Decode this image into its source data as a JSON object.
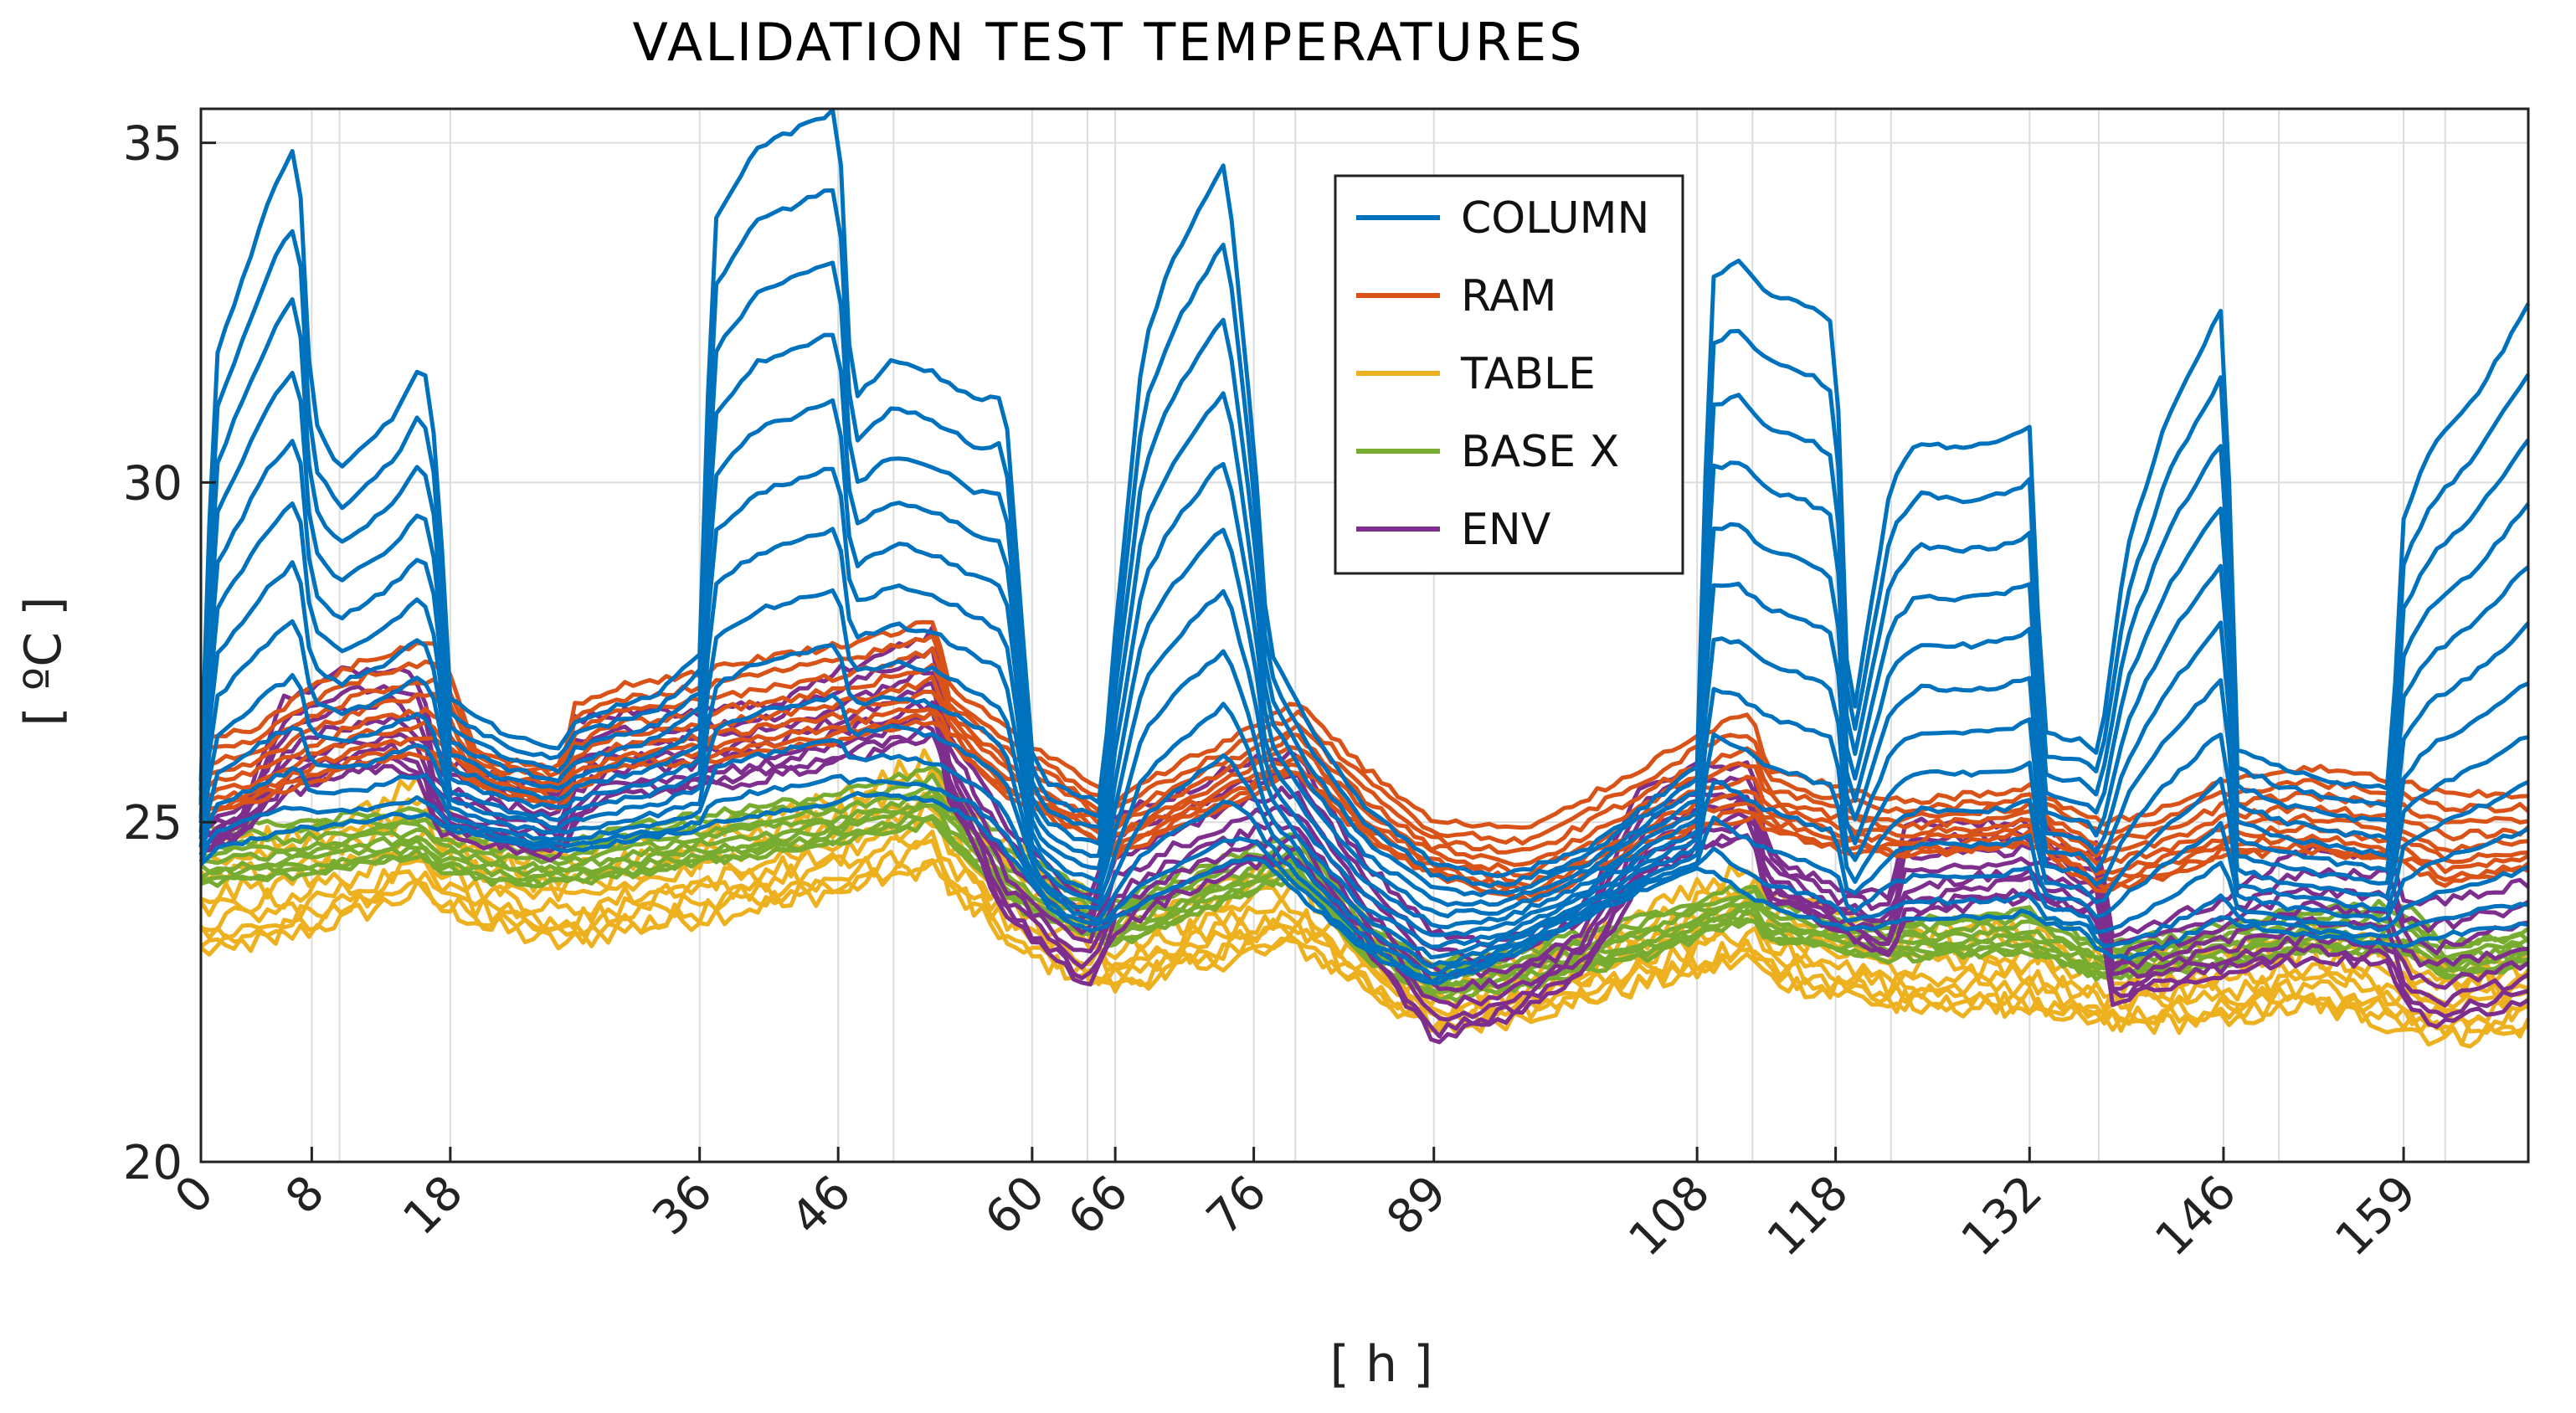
{
  "chart_data": {
    "type": "line",
    "title": "VALIDATION TEST TEMPERATURES",
    "xlabel": "[ h ]",
    "ylabel": "[ ºC ]",
    "xlim": [
      0,
      168
    ],
    "ylim": [
      20,
      35.5
    ],
    "x_ticks": [
      0,
      8,
      18,
      36,
      46,
      60,
      66,
      76,
      89,
      108,
      118,
      132,
      146,
      159
    ],
    "x_grid": [
      0,
      8,
      10,
      18,
      36,
      46,
      50,
      60,
      64,
      66,
      76,
      79,
      89,
      108,
      112,
      118,
      122,
      132,
      137,
      146,
      150,
      159,
      162
    ],
    "y_ticks": [
      20,
      25,
      30,
      35
    ],
    "grid": true,
    "legend_position": "top-center",
    "series": [
      {
        "name": "COLUMN",
        "color": "#0072BD"
      },
      {
        "name": "RAM",
        "color": "#D95319"
      },
      {
        "name": "TABLE",
        "color": "#EDB120"
      },
      {
        "name": "BASE X",
        "color": "#77AC30"
      },
      {
        "name": "ENV",
        "color": "#7E2F8E"
      }
    ],
    "column_envelope": {
      "x": [
        0,
        1,
        3,
        5,
        7,
        8,
        10,
        12,
        14,
        16,
        17,
        18,
        22,
        26,
        27,
        30,
        33,
        36,
        37,
        40,
        43,
        46,
        47,
        50,
        53,
        56,
        58,
        60,
        61,
        63,
        65,
        66,
        68,
        70,
        72,
        74,
        76,
        77,
        80,
        84,
        88,
        89,
        94,
        100,
        104,
        108,
        109,
        111,
        113,
        116,
        118,
        119,
        122,
        124,
        127,
        130,
        132,
        133,
        136,
        137,
        139,
        142,
        144,
        146,
        147,
        150,
        154,
        158,
        159,
        161,
        164,
        168
      ],
      "y_max": [
        25.6,
        31.8,
        33.0,
        34.2,
        35.0,
        31.0,
        30.2,
        30.6,
        31.0,
        31.8,
        30.5,
        26.8,
        26.3,
        26.1,
        26.5,
        26.7,
        26.9,
        27.5,
        33.8,
        34.9,
        35.2,
        35.5,
        31.2,
        31.8,
        31.6,
        31.2,
        31.3,
        26.0,
        25.6,
        25.4,
        25.3,
        27.8,
        32.0,
        33.2,
        34.0,
        34.7,
        30.6,
        27.6,
        26.4,
        25.2,
        24.6,
        24.4,
        24.2,
        24.6,
        25.2,
        25.8,
        33.0,
        33.3,
        32.8,
        32.6,
        32.3,
        26.2,
        30.0,
        30.6,
        30.5,
        30.6,
        30.8,
        26.3,
        26.2,
        26.0,
        29.0,
        31.0,
        31.8,
        32.6,
        26.1,
        25.8,
        25.6,
        25.5,
        29.5,
        30.5,
        31.2,
        32.6
      ],
      "y_min": [
        24.4,
        24.6,
        24.7,
        24.8,
        24.9,
        24.9,
        25.0,
        25.0,
        25.1,
        25.1,
        25.0,
        24.9,
        24.7,
        24.6,
        24.6,
        24.7,
        24.8,
        24.9,
        25.0,
        25.1,
        25.2,
        25.3,
        25.4,
        25.4,
        25.3,
        25.0,
        24.6,
        24.1,
        23.8,
        23.5,
        23.4,
        23.6,
        23.8,
        24.0,
        24.2,
        24.4,
        24.5,
        24.4,
        23.8,
        23.1,
        22.7,
        22.6,
        23.0,
        23.6,
        24.0,
        24.3,
        24.3,
        24.0,
        23.8,
        23.6,
        23.5,
        23.4,
        23.5,
        23.6,
        23.6,
        23.6,
        23.7,
        23.5,
        23.4,
        23.1,
        23.0,
        23.2,
        23.4,
        23.6,
        23.5,
        23.4,
        23.3,
        23.2,
        23.2,
        23.3,
        23.4,
        23.5
      ]
    },
    "ram_envelope": {
      "x": [
        0,
        4,
        8,
        12,
        16,
        17,
        20,
        26,
        27,
        30,
        36,
        40,
        46,
        50,
        53,
        54,
        58,
        64,
        66,
        70,
        76,
        79,
        84,
        89,
        96,
        104,
        108,
        112,
        113,
        118,
        122,
        128,
        132,
        137,
        142,
        146,
        152,
        159,
        162,
        168
      ],
      "y_max": [
        26.2,
        26.4,
        27.0,
        27.4,
        27.6,
        27.7,
        26.0,
        25.8,
        26.7,
        27.0,
        27.2,
        27.4,
        27.6,
        27.8,
        28.0,
        27.0,
        26.4,
        25.6,
        25.3,
        25.8,
        26.4,
        26.8,
        25.8,
        25.0,
        24.9,
        25.8,
        26.3,
        26.6,
        25.8,
        25.5,
        25.3,
        25.4,
        25.5,
        25.0,
        25.2,
        25.6,
        25.8,
        25.6,
        25.4,
        25.4
      ],
      "y_min": [
        25.1,
        25.3,
        25.6,
        25.9,
        26.0,
        25.9,
        25.5,
        25.2,
        25.5,
        25.8,
        25.9,
        26.0,
        26.2,
        26.4,
        26.5,
        26.2,
        25.4,
        24.8,
        24.5,
        24.9,
        25.4,
        25.7,
        24.8,
        24.2,
        23.8,
        24.6,
        24.9,
        25.1,
        24.9,
        24.6,
        24.5,
        24.6,
        24.7,
        24.0,
        24.2,
        24.5,
        24.6,
        24.4,
        24.1,
        24.3
      ]
    },
    "table_envelope": {
      "x": [
        0,
        6,
        12,
        16,
        17,
        22,
        26,
        30,
        36,
        46,
        53,
        54,
        60,
        66,
        70,
        76,
        79,
        84,
        89,
        96,
        104,
        112,
        113,
        118,
        122,
        132,
        137,
        146,
        152,
        159,
        162,
        168
      ],
      "y_max": [
        24.6,
        24.8,
        25.2,
        25.6,
        25.2,
        24.6,
        24.4,
        24.6,
        24.9,
        25.3,
        26.0,
        25.3,
        24.4,
        23.6,
        23.8,
        24.2,
        24.4,
        23.4,
        22.8,
        23.0,
        23.6,
        24.4,
        23.9,
        23.6,
        23.4,
        23.4,
        23.0,
        23.2,
        23.4,
        23.1,
        22.9,
        23.0
      ],
      "y_min": [
        23.1,
        23.3,
        23.7,
        24.0,
        23.8,
        23.4,
        23.2,
        23.4,
        23.6,
        24.0,
        24.4,
        24.0,
        23.0,
        22.6,
        22.8,
        23.1,
        23.2,
        22.6,
        21.9,
        22.2,
        22.6,
        23.0,
        22.7,
        22.5,
        22.3,
        22.3,
        22.0,
        22.1,
        22.3,
        22.0,
        21.8,
        22.0
      ]
    },
    "base_envelope": {
      "x": [
        0,
        6,
        12,
        16,
        17,
        22,
        26,
        30,
        36,
        46,
        53,
        54,
        60,
        66,
        70,
        76,
        79,
        84,
        89,
        96,
        104,
        112,
        113,
        118,
        122,
        132,
        137,
        146,
        152,
        159,
        162,
        168
      ],
      "y_max": [
        24.9,
        25.0,
        25.1,
        25.2,
        25.0,
        24.8,
        24.7,
        24.9,
        25.1,
        25.4,
        25.8,
        25.5,
        24.4,
        23.8,
        24.2,
        24.6,
        24.8,
        23.6,
        22.9,
        23.2,
        23.6,
        24.1,
        23.8,
        23.6,
        23.5,
        23.7,
        23.2,
        23.5,
        23.7,
        23.8,
        23.2,
        23.4
      ],
      "y_min": [
        24.1,
        24.2,
        24.4,
        24.5,
        24.3,
        24.1,
        24.1,
        24.2,
        24.4,
        24.7,
        25.0,
        24.7,
        23.6,
        23.2,
        23.5,
        24.0,
        24.2,
        23.0,
        22.4,
        22.6,
        23.0,
        23.6,
        23.3,
        23.1,
        23.0,
        23.1,
        22.7,
        22.9,
        23.1,
        23.1,
        22.7,
        22.9
      ]
    },
    "env_envelope": {
      "x": [
        0,
        3,
        6,
        10,
        14,
        16,
        17,
        22,
        26,
        27,
        30,
        36,
        42,
        46,
        50,
        53,
        54,
        58,
        64,
        66,
        70,
        76,
        79,
        84,
        89,
        94,
        100,
        104,
        108,
        112,
        113,
        118,
        122,
        123,
        128,
        132,
        137,
        138,
        142,
        146,
        150,
        152,
        158,
        159,
        161,
        168
      ],
      "y_max": [
        25.0,
        25.2,
        26.8,
        27.2,
        27.3,
        27.0,
        25.9,
        25.6,
        25.4,
        26.5,
        26.6,
        26.6,
        26.8,
        27.2,
        27.6,
        27.8,
        26.3,
        25.0,
        23.8,
        25.1,
        25.4,
        25.9,
        26.0,
        24.4,
        23.4,
        23.2,
        23.8,
        25.6,
        25.8,
        25.8,
        24.6,
        24.0,
        23.9,
        25.0,
        25.0,
        25.0,
        24.6,
        23.3,
        23.6,
        23.8,
        24.4,
        24.6,
        24.5,
        23.9,
        23.8,
        24.1
      ],
      "y_min": [
        24.6,
        24.8,
        25.4,
        25.7,
        25.8,
        25.6,
        24.9,
        24.6,
        24.5,
        25.0,
        25.4,
        25.5,
        25.7,
        25.9,
        26.1,
        26.3,
        25.4,
        23.6,
        22.6,
        23.4,
        23.9,
        24.4,
        24.5,
        23.2,
        21.8,
        22.1,
        22.8,
        24.2,
        24.6,
        24.8,
        23.9,
        23.4,
        23.0,
        23.6,
        23.8,
        23.9,
        23.6,
        22.4,
        22.6,
        22.8,
        22.9,
        23.0,
        22.9,
        22.4,
        22.0,
        22.4
      ]
    }
  }
}
